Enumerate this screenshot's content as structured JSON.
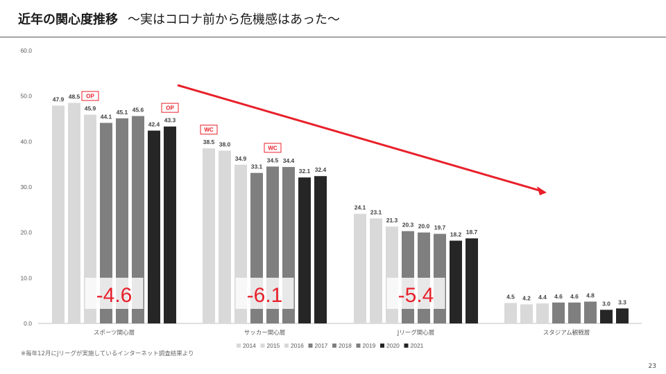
{
  "title": "近年の関心度推移",
  "subtitle": "〜実はコロナ前から危機感はあった〜",
  "footnote": "※毎年12月にJリーグが実施しているインターネット調査結果より",
  "page_number": "23",
  "chart_data": {
    "type": "bar",
    "categories": [
      "スポーツ関心層",
      "サッカー関心層",
      "Jリーグ関心層",
      "スタジアム観戦層"
    ],
    "ylim": [
      0,
      60
    ],
    "yticks": [
      "0.0",
      "10.0",
      "20.0",
      "30.0",
      "40.0",
      "50.0",
      "60.0"
    ],
    "series": [
      {
        "name": "2014",
        "color": "#d9d9d9",
        "values": [
          47.9,
          38.5,
          24.1,
          4.5
        ]
      },
      {
        "name": "2015",
        "color": "#d9d9d9",
        "values": [
          48.5,
          38.0,
          23.1,
          4.2
        ]
      },
      {
        "name": "2016",
        "color": "#d9d9d9",
        "values": [
          45.9,
          34.9,
          21.3,
          4.4
        ]
      },
      {
        "name": "2017",
        "color": "#7f7f7f",
        "values": [
          44.1,
          33.1,
          20.3,
          4.6
        ]
      },
      {
        "name": "2018",
        "color": "#7f7f7f",
        "values": [
          45.1,
          34.5,
          20.0,
          4.6
        ]
      },
      {
        "name": "2019",
        "color": "#7f7f7f",
        "values": [
          45.6,
          34.4,
          19.7,
          4.8
        ]
      },
      {
        "name": "2020",
        "color": "#262626",
        "values": [
          42.4,
          32.1,
          18.2,
          3.0
        ]
      },
      {
        "name": "2021",
        "color": "#262626",
        "values": [
          43.3,
          32.4,
          18.7,
          3.3
        ]
      }
    ],
    "value_labels": [
      [
        "47.9",
        "48.5",
        "45.9",
        "44.1",
        "45.1",
        "45.6",
        "42.4",
        "43.3"
      ],
      [
        "38.5",
        "38.0",
        "34.9",
        "33.1",
        "34.5",
        "34.4",
        "32.1",
        "32.4"
      ],
      [
        "24.1",
        "23.1",
        "21.3",
        "20.3",
        "20.0",
        "19.7",
        "18.2",
        "18.7"
      ],
      [
        "4.5",
        "4.2",
        "4.4",
        "4.6",
        "4.6",
        "4.8",
        "3.0",
        "3.3"
      ]
    ],
    "event_tags": [
      {
        "text": "OP",
        "category": 0,
        "series": 2
      },
      {
        "text": "OP",
        "category": 0,
        "series": 7
      },
      {
        "text": "WC",
        "category": 1,
        "series": 0
      },
      {
        "text": "WC",
        "category": 1,
        "series": 4
      }
    ],
    "change_labels": [
      {
        "text": "-4.6",
        "category": 0
      },
      {
        "text": "-6.1",
        "category": 1
      },
      {
        "text": "-5.4",
        "category": 2
      }
    ],
    "trend_arrow_color": "#e8202a",
    "accent_color": "#e8202a",
    "legend_position": "bottom",
    "grid": false
  }
}
